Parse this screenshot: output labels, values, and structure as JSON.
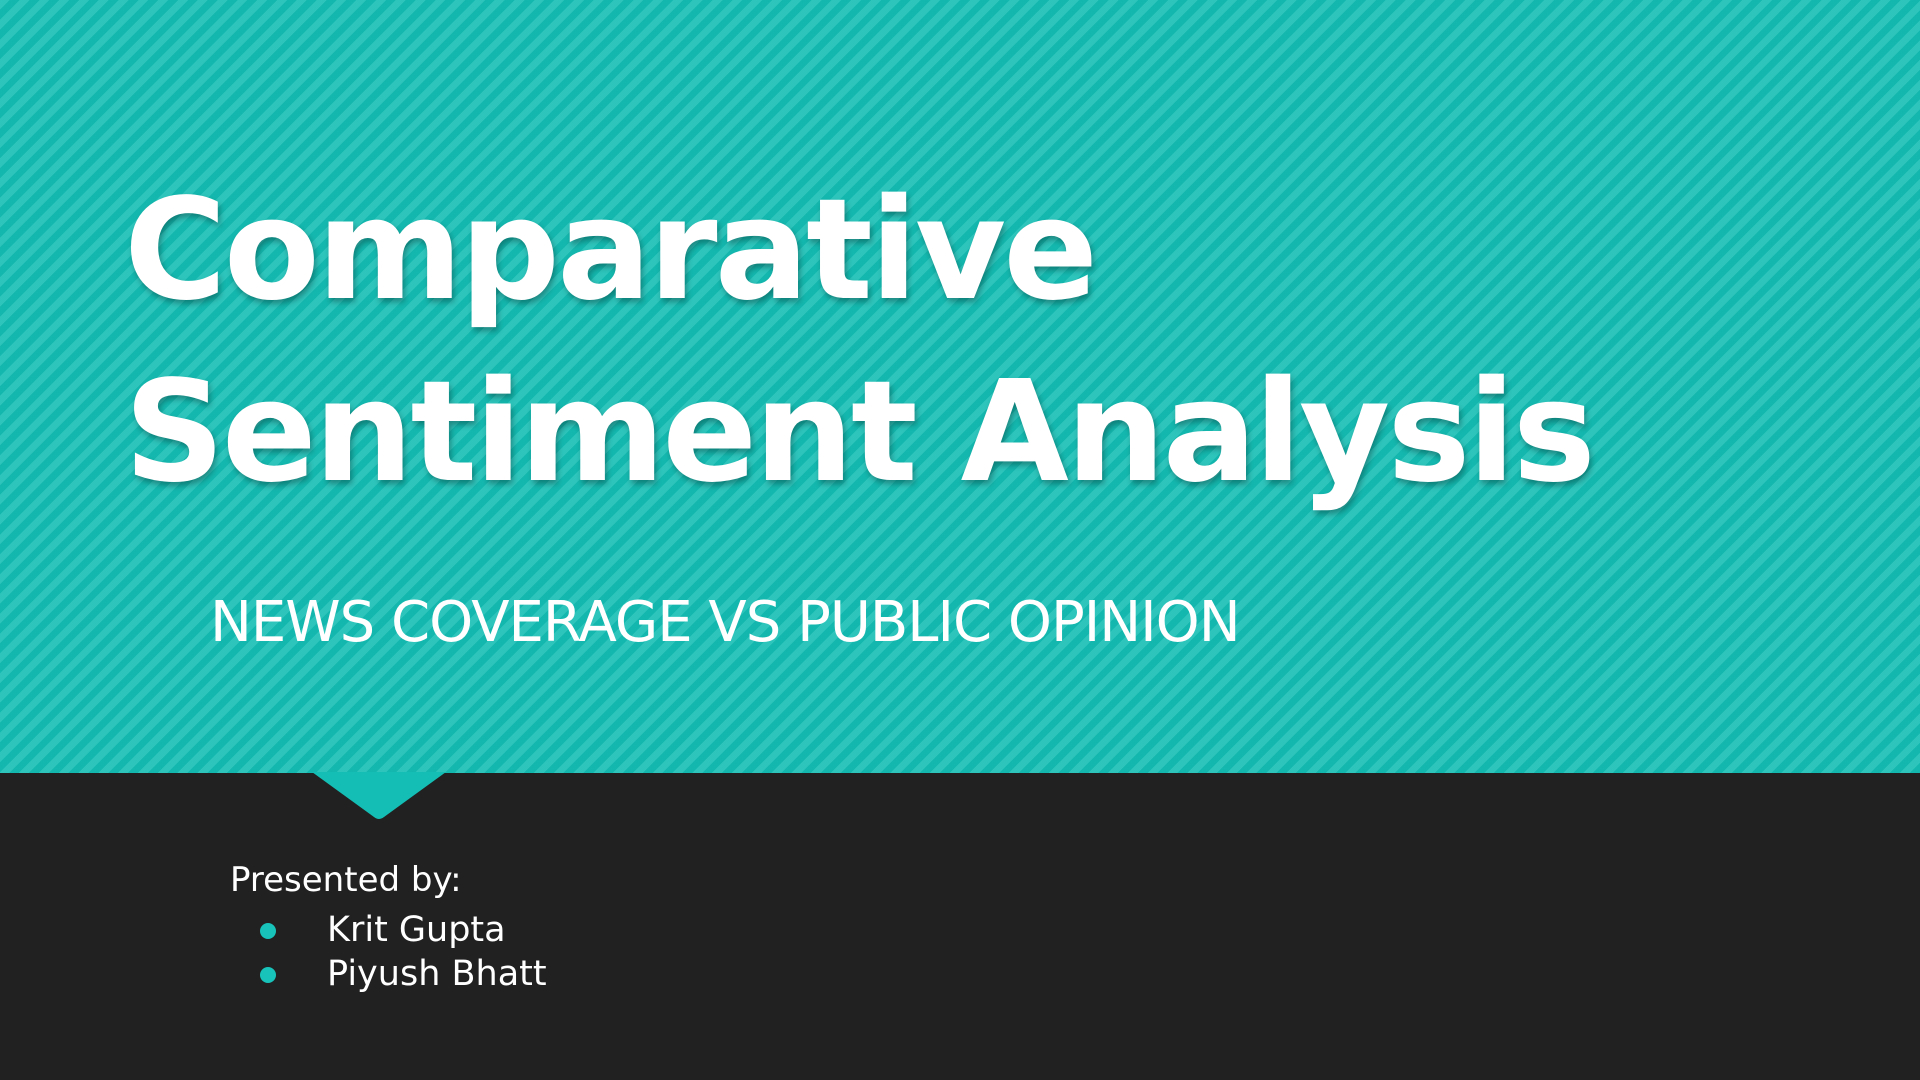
{
  "slide": {
    "title_lines": [
      "Comparative",
      "Sentiment Analysis"
    ],
    "subtitle": "NEWS COVERAGE VS PUBLIC OPINION",
    "presented_by_label": "Presented by:",
    "presenters": [
      "Krit Gupta",
      "Piyush Bhatt"
    ]
  },
  "colors": {
    "accent": "#15beb4",
    "dark_band": "#212121",
    "text": "#ffffff"
  },
  "icons": {
    "bullet": "dot-bullet-icon",
    "pointer": "downward-pointer-triangle"
  }
}
